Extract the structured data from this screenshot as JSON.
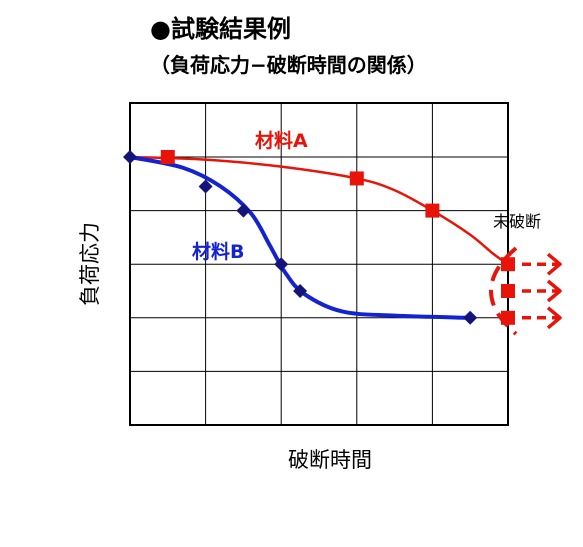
{
  "chart_data": {
    "type": "line",
    "title": "●試験結果例",
    "subtitle": "（負荷応力−破断時間の関係）",
    "xlabel": "破断時間",
    "ylabel": "負荷応力",
    "grid": true,
    "xlim": [
      0,
      5
    ],
    "ylim": [
      0,
      5
    ],
    "series": [
      {
        "name": "材料A",
        "color": "#e8140a",
        "marker": "square",
        "points": [
          [
            0.5,
            5.0
          ],
          [
            3.0,
            4.6
          ],
          [
            4.0,
            4.0
          ],
          [
            5.0,
            3.0
          ],
          [
            5.0,
            2.5
          ],
          [
            5.0,
            2.0
          ]
        ],
        "curve": [
          [
            0.0,
            5.0
          ],
          [
            1.0,
            4.95
          ],
          [
            2.0,
            4.82
          ],
          [
            3.0,
            4.6
          ],
          [
            3.5,
            4.38
          ],
          [
            4.0,
            4.0
          ],
          [
            4.5,
            3.55
          ],
          [
            4.8,
            3.2
          ],
          [
            5.0,
            3.0
          ]
        ]
      },
      {
        "name": "材料B",
        "color": "#1423d2",
        "marker": "diamond",
        "points": [
          [
            0.0,
            5.0
          ],
          [
            1.0,
            4.45
          ],
          [
            1.5,
            4.0
          ],
          [
            2.0,
            3.0
          ],
          [
            2.25,
            2.5
          ],
          [
            4.5,
            2.0
          ]
        ],
        "curve": [
          [
            0.0,
            5.0
          ],
          [
            0.7,
            4.8
          ],
          [
            1.2,
            4.45
          ],
          [
            1.6,
            3.95
          ],
          [
            1.85,
            3.35
          ],
          [
            2.05,
            2.85
          ],
          [
            2.3,
            2.45
          ],
          [
            2.8,
            2.12
          ],
          [
            3.5,
            2.04
          ],
          [
            4.5,
            2.0
          ]
        ]
      }
    ],
    "annotations": {
      "unbroken_label": "未破断",
      "arrow_color": "#e8140a"
    }
  }
}
